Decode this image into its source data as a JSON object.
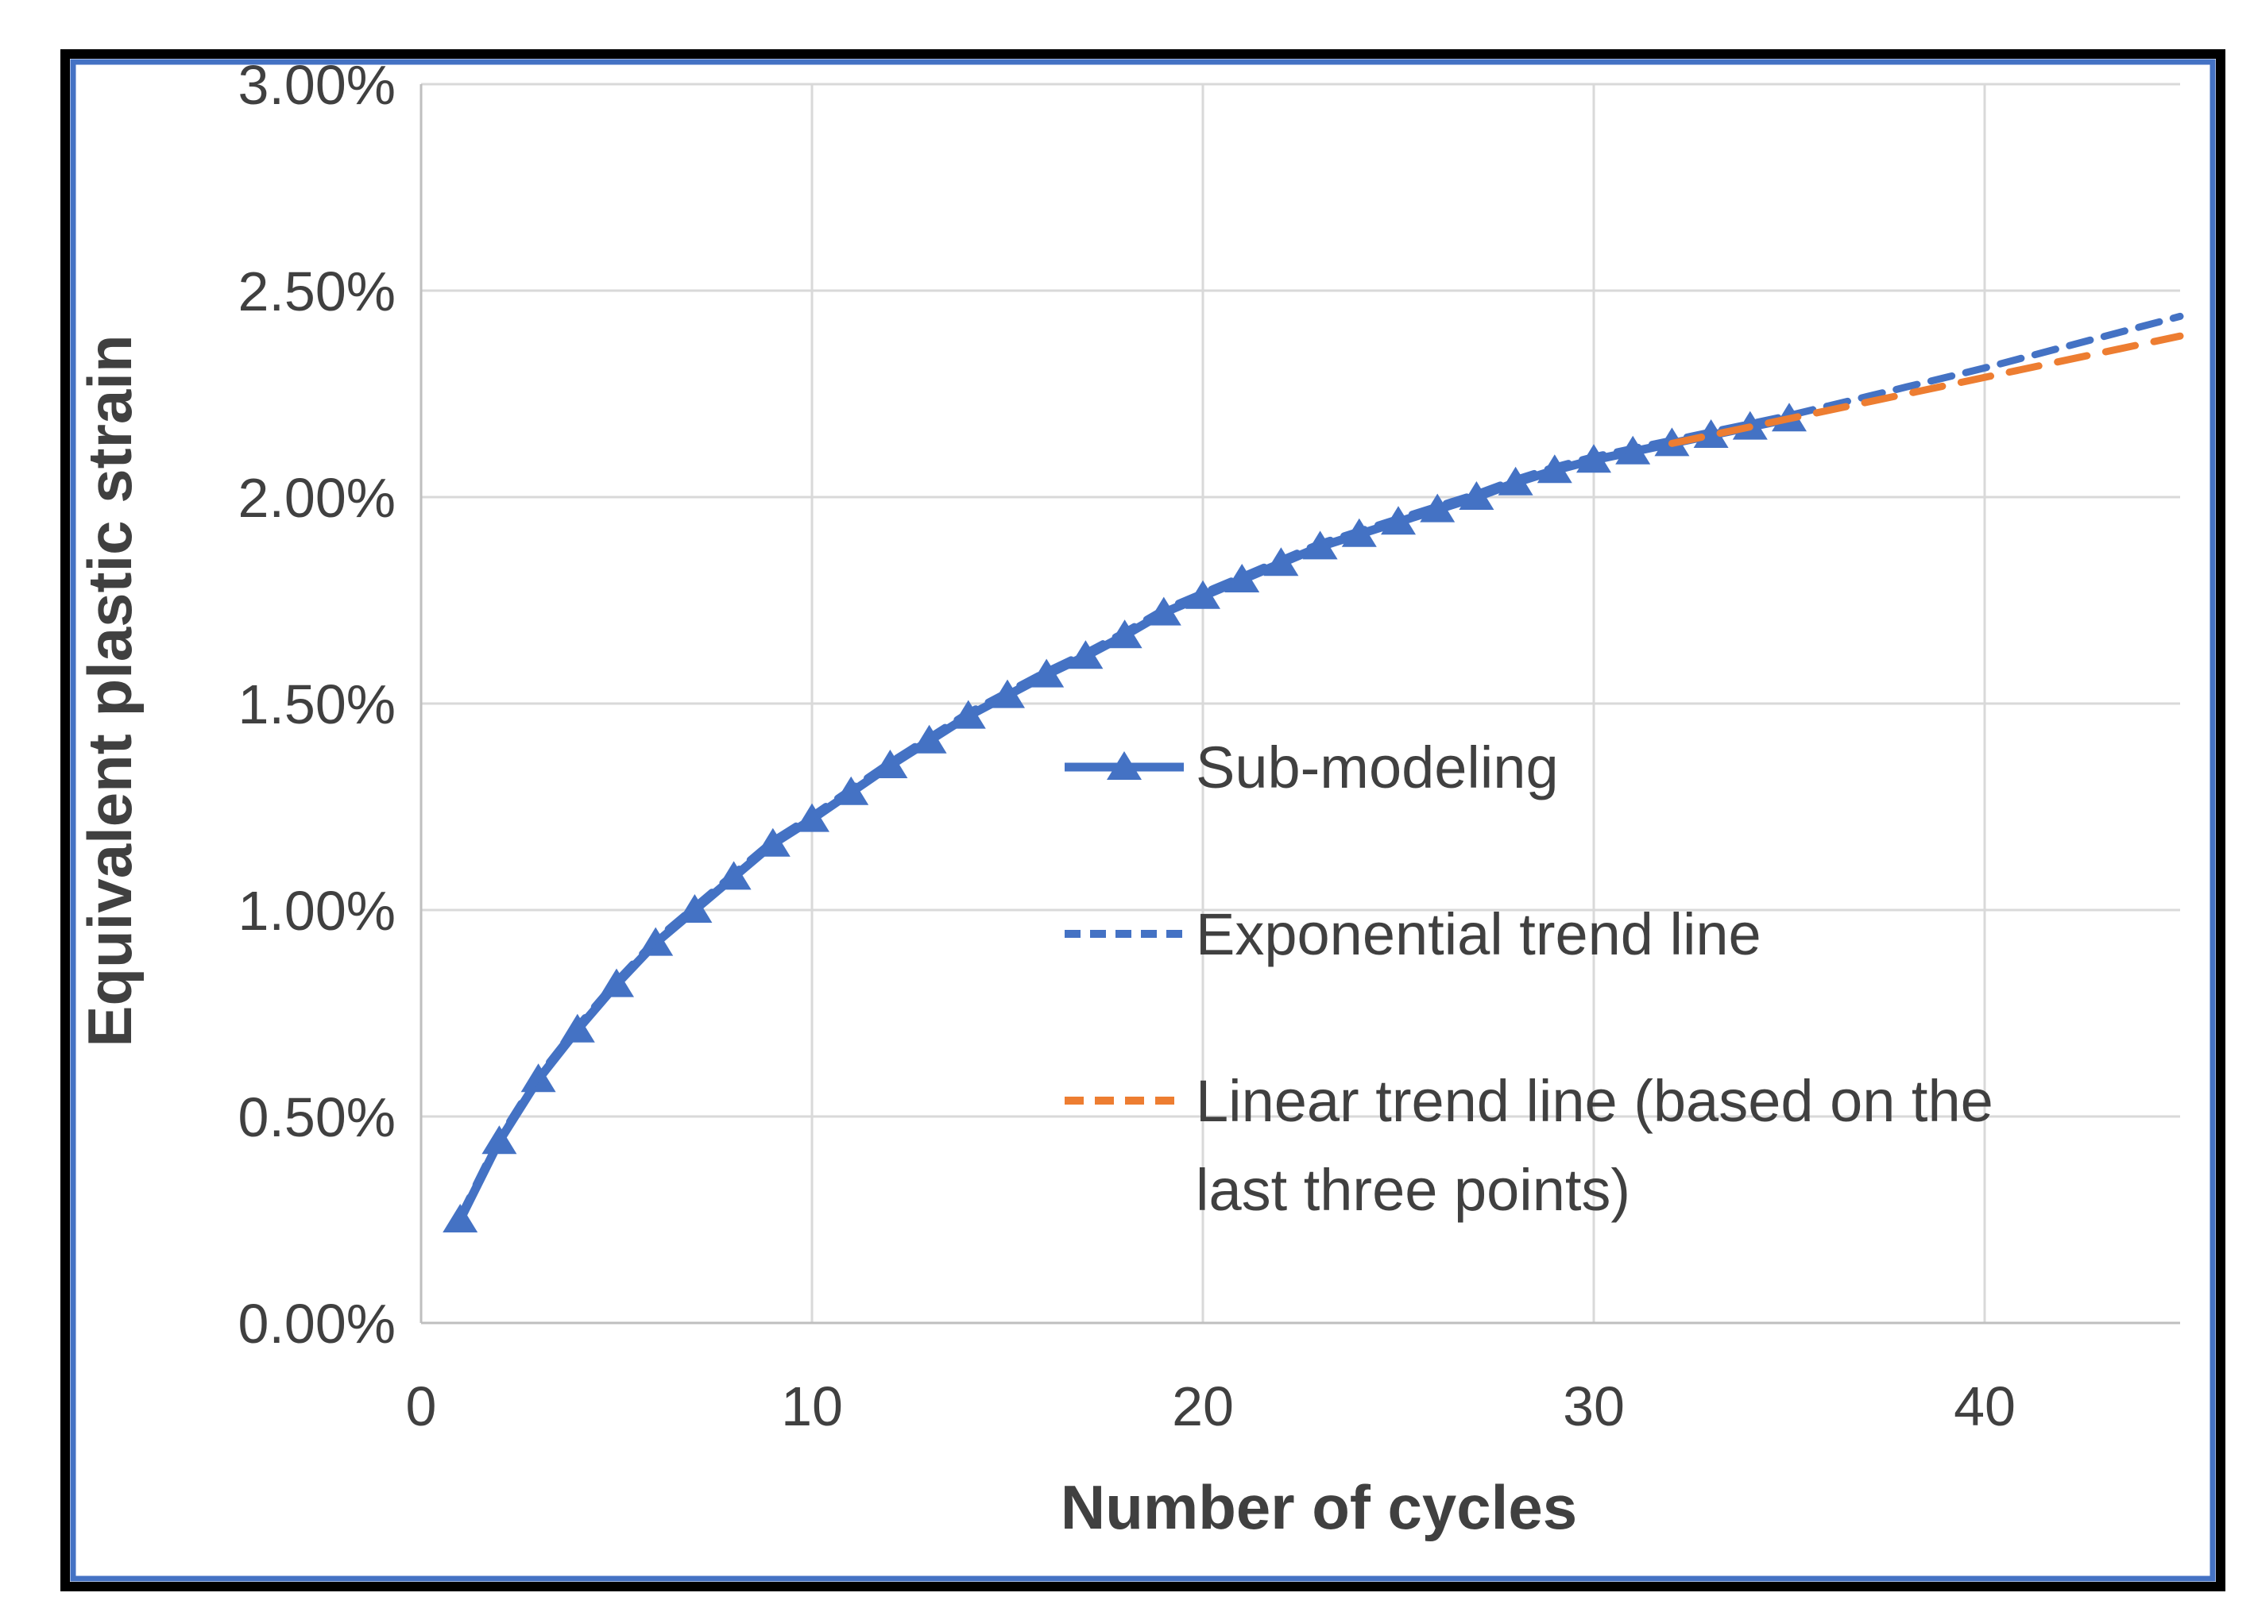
{
  "frame": {
    "outer_border_color": "#000000",
    "inner_border_color": "#4472C4",
    "background": "#FFFFFF"
  },
  "colors": {
    "accent_blue": "#4472C4",
    "accent_orange": "#ED7D31",
    "gridline": "#D9D9D9",
    "axis_line": "#BFBFBF",
    "text": "#404040"
  },
  "chart_data": {
    "type": "line",
    "title": "",
    "xlabel": "Number of cycles",
    "ylabel": "Equivalent plastic strain",
    "xlim": [
      0,
      45
    ],
    "ylim_percent": [
      0,
      3
    ],
    "grid": true,
    "legend_position": "center-right",
    "x_ticks": [
      "0",
      "10",
      "20",
      "30",
      "40"
    ],
    "x_tick_values": [
      0,
      10,
      20,
      30,
      40
    ],
    "y_ticks": [
      "0.00%",
      "0.50%",
      "1.00%",
      "1.50%",
      "2.00%",
      "2.50%",
      "3.00%"
    ],
    "y_tick_values_percent": [
      0,
      0.5,
      1,
      1.5,
      2,
      2.5,
      3
    ],
    "series": [
      {
        "name": "Sub-modeling",
        "color": "#4472C4",
        "line_style": "solid",
        "marker": "triangle",
        "x": [
          1,
          2,
          3,
          4,
          5,
          6,
          7,
          8,
          9,
          10,
          11,
          12,
          13,
          14,
          15,
          16,
          17,
          18,
          19,
          20,
          21,
          22,
          23,
          24,
          25,
          26,
          27,
          28,
          29,
          30,
          31,
          32,
          33,
          34,
          35
        ],
        "y_percent": [
          0.25,
          0.44,
          0.59,
          0.71,
          0.82,
          0.92,
          1.0,
          1.08,
          1.16,
          1.22,
          1.285,
          1.35,
          1.41,
          1.47,
          1.52,
          1.57,
          1.615,
          1.665,
          1.72,
          1.76,
          1.8,
          1.84,
          1.88,
          1.91,
          1.94,
          1.97,
          2.0,
          2.035,
          2.065,
          2.09,
          2.11,
          2.13,
          2.15,
          2.17,
          2.19
        ]
      },
      {
        "name": "Exponential trend line",
        "color": "#4472C4",
        "line_style": "dashed",
        "marker": "none",
        "x": [
          1,
          2,
          3,
          4,
          5,
          6,
          7,
          8,
          9,
          10,
          11,
          12,
          13,
          14,
          15,
          16,
          17,
          18,
          19,
          20,
          21,
          22,
          23,
          24,
          25,
          26,
          27,
          28,
          29,
          30,
          31,
          32,
          33,
          34,
          35,
          36,
          37,
          38,
          39,
          40,
          41,
          42,
          43,
          44,
          45
        ],
        "y_percent": [
          0.25,
          0.44,
          0.59,
          0.71,
          0.82,
          0.92,
          1.0,
          1.08,
          1.16,
          1.22,
          1.285,
          1.35,
          1.41,
          1.47,
          1.52,
          1.57,
          1.615,
          1.665,
          1.72,
          1.76,
          1.8,
          1.84,
          1.88,
          1.91,
          1.94,
          1.97,
          2.0,
          2.035,
          2.065,
          2.09,
          2.11,
          2.13,
          2.15,
          2.17,
          2.19,
          2.213,
          2.236,
          2.259,
          2.282,
          2.305,
          2.33,
          2.355,
          2.38,
          2.405,
          2.43
        ]
      },
      {
        "name": "Linear trend line (based on the last three points)",
        "color": "#ED7D31",
        "line_style": "dashed",
        "marker": "none",
        "x": [
          32,
          45
        ],
        "y_percent": [
          2.13,
          2.39
        ]
      }
    ]
  },
  "legend": {
    "items": [
      {
        "label": "Sub-modeling",
        "lines": [
          "Sub-modeling"
        ]
      },
      {
        "label": "Exponential trend line",
        "lines": [
          "Exponential trend line"
        ]
      },
      {
        "label": "Linear trend line (based on the last three points)",
        "lines": [
          "Linear trend line (based on the",
          "last three points)"
        ]
      }
    ]
  }
}
